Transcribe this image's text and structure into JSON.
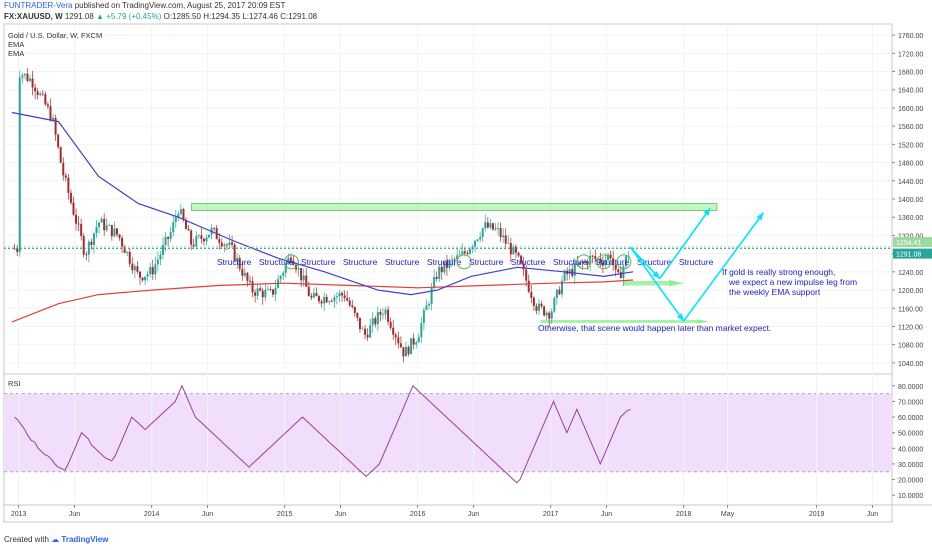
{
  "header": {
    "author": "FUNTRADER-Vera",
    "published_text": "published on TradingView.com, August 25, 2017 20:09 EST",
    "symbol": "FX:XAUUSD, W",
    "last": "1291.08",
    "change": "▲ +5.79 (+0.45%)",
    "open": "O:1285.50",
    "high": "H:1294.35",
    "low": "L:1274.46",
    "close": "C:1291.08"
  },
  "legend": {
    "title": "Gold / U.S. Dollar, W, FXCM",
    "ind1": "EMA",
    "ind2": "EMA"
  },
  "rsi_label": "RSI",
  "price_axis": [
    "1760.00",
    "1720.00",
    "1680.00",
    "1640.00",
    "1600.00",
    "1560.00",
    "1520.00",
    "1480.00",
    "1440.00",
    "1400.00",
    "1360.00",
    "1320.00",
    "1280.00",
    "1240.00",
    "1200.00",
    "1160.00",
    "1120.00",
    "1080.00",
    "1040.00"
  ],
  "price_tags": {
    "high": "1294.41",
    "last": "1291.08"
  },
  "rsi_axis": [
    "80.0000",
    "70.0000",
    "60.0000",
    "50.0000",
    "40.0000",
    "30.0000",
    "20.0000",
    "10.0000"
  ],
  "time_axis": [
    "2013",
    "Jun",
    "2014",
    "Jun",
    "2015",
    "Jun",
    "2016",
    "Jun",
    "2017",
    "Jun",
    "2018",
    "May",
    "2019",
    "Jun"
  ],
  "annotations": {
    "structure": "Structure",
    "note_strong_1": "If gold is really strong enough,",
    "note_strong_2": "we expect a new impulse leg from",
    "note_strong_3": "the weekly EMA support",
    "note_otherwise": "Otherwise, that scene would happen later than market expect."
  },
  "footer": {
    "created": "Created with",
    "brand": "TradingView"
  },
  "colors": {
    "ema_fast": "#3f3fd1",
    "ema_slow": "#e0403a",
    "bull": "#26a69a",
    "bear": "#a52a2a",
    "zone": "#90ee90",
    "arrow": "#00e5ff",
    "rsi_line": "#9b3f9b",
    "rsi_band": "#f0defa",
    "annotation_text": "#2222cc"
  },
  "chart_data": [
    {
      "type": "candlestick",
      "title": "Gold / U.S. Dollar, W, FXCM",
      "ylim": [
        1020,
        1780
      ],
      "x_ticks": [
        "2013",
        "Jun",
        "2014",
        "Jun",
        "2015",
        "Jun",
        "2016",
        "Jun",
        "2017",
        "Jun",
        "2018",
        "May",
        "2019",
        "Jun"
      ],
      "close_path": [
        [
          2013.0,
          1680
        ],
        [
          2013.1,
          1660
        ],
        [
          2013.25,
          1580
        ],
        [
          2013.33,
          1460
        ],
        [
          2013.5,
          1280
        ],
        [
          2013.6,
          1350
        ],
        [
          2013.75,
          1320
        ],
        [
          2013.9,
          1230
        ],
        [
          2014.0,
          1240
        ],
        [
          2014.15,
          1330
        ],
        [
          2014.2,
          1380
        ],
        [
          2014.3,
          1300
        ],
        [
          2014.45,
          1330
        ],
        [
          2014.6,
          1290
        ],
        [
          2014.75,
          1200
        ],
        [
          2014.9,
          1190
        ],
        [
          2015.05,
          1280
        ],
        [
          2015.2,
          1180
        ],
        [
          2015.45,
          1190
        ],
        [
          2015.6,
          1100
        ],
        [
          2015.75,
          1160
        ],
        [
          2015.9,
          1060
        ],
        [
          2016.0,
          1100
        ],
        [
          2016.15,
          1240
        ],
        [
          2016.35,
          1280
        ],
        [
          2016.5,
          1340
        ],
        [
          2016.6,
          1330
        ],
        [
          2016.75,
          1270
        ],
        [
          2016.9,
          1160
        ],
        [
          2017.0,
          1150
        ],
        [
          2017.1,
          1230
        ],
        [
          2017.3,
          1270
        ],
        [
          2017.4,
          1265
        ],
        [
          2017.45,
          1280
        ],
        [
          2017.5,
          1220
        ],
        [
          2017.6,
          1291
        ]
      ],
      "ema_fast_path": [
        [
          2012.95,
          1590
        ],
        [
          2013.3,
          1570
        ],
        [
          2013.6,
          1450
        ],
        [
          2013.9,
          1390
        ],
        [
          2014.2,
          1360
        ],
        [
          2014.6,
          1310
        ],
        [
          2014.95,
          1270
        ],
        [
          2015.3,
          1240
        ],
        [
          2015.7,
          1200
        ],
        [
          2015.95,
          1190
        ],
        [
          2016.15,
          1200
        ],
        [
          2016.4,
          1230
        ],
        [
          2016.75,
          1250
        ],
        [
          2017.1,
          1240
        ],
        [
          2017.4,
          1230
        ],
        [
          2017.62,
          1240
        ]
      ],
      "ema_slow_path": [
        [
          2012.95,
          1130
        ],
        [
          2013.3,
          1170
        ],
        [
          2013.6,
          1190
        ],
        [
          2014.0,
          1200
        ],
        [
          2014.5,
          1210
        ],
        [
          2015.0,
          1215
        ],
        [
          2015.5,
          1210
        ],
        [
          2016.0,
          1205
        ],
        [
          2016.5,
          1210
        ],
        [
          2017.0,
          1215
        ],
        [
          2017.4,
          1218
        ],
        [
          2017.62,
          1222
        ]
      ],
      "resistance_zone": [
        1375,
        1390
      ],
      "support_zones": [
        [
          1210,
          1220
        ],
        [
          1128,
          1134
        ]
      ],
      "horizontal_levels": [
        1294.41,
        1291.08
      ]
    },
    {
      "type": "line",
      "title": "RSI",
      "ylim": [
        5,
        85
      ],
      "bands": [
        25,
        75
      ],
      "values": [
        60,
        58,
        55,
        52,
        48,
        45,
        44,
        40,
        38,
        36,
        35,
        33,
        30,
        28,
        27,
        26,
        30,
        35,
        40,
        45,
        50,
        48,
        46,
        42,
        40,
        38,
        36,
        34,
        33,
        32,
        35,
        40,
        45,
        50,
        55,
        60,
        58,
        56,
        54,
        52,
        54,
        56,
        58,
        60,
        62,
        64,
        66,
        68,
        70,
        75,
        80,
        75,
        70,
        65,
        60,
        58,
        56,
        54,
        52,
        50,
        48,
        46,
        44,
        42,
        40,
        38,
        36,
        34,
        32,
        30,
        28,
        30,
        32,
        34,
        36,
        38,
        40,
        42,
        44,
        46,
        48,
        50,
        52,
        54,
        56,
        58,
        60,
        58,
        56,
        54,
        52,
        50,
        48,
        46,
        44,
        42,
        40,
        38,
        36,
        34,
        32,
        30,
        28,
        26,
        24,
        22,
        24,
        26,
        28,
        30,
        35,
        40,
        45,
        50,
        55,
        60,
        65,
        70,
        75,
        80,
        78,
        76,
        74,
        72,
        70,
        68,
        66,
        64,
        62,
        60,
        58,
        56,
        54,
        52,
        50,
        48,
        46,
        44,
        42,
        40,
        38,
        36,
        34,
        32,
        30,
        28,
        26,
        24,
        22,
        20,
        18,
        20,
        25,
        30,
        35,
        40,
        45,
        50,
        55,
        60,
        65,
        70,
        65,
        60,
        55,
        50,
        55,
        60,
        65,
        60,
        55,
        50,
        45,
        40,
        35,
        30,
        35,
        40,
        45,
        50,
        55,
        60,
        62,
        64,
        65
      ]
    }
  ]
}
